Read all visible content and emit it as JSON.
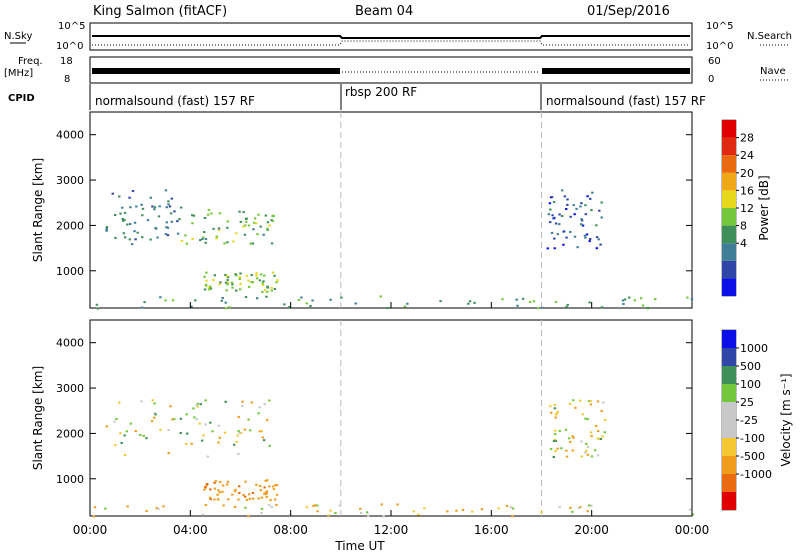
{
  "header": {
    "station": "King Salmon (fitACF)",
    "beam": "Beam 04",
    "date": "01/Sep/2016"
  },
  "top_panels": {
    "nsky_label": "N.Sky",
    "nsky_ticks": [
      "10^5",
      "10^0"
    ],
    "nsky_right_ticks": [
      "10^5",
      "10^0"
    ],
    "nsearch_label": "N.Search",
    "freq_label": "Freq.",
    "freq_unit": "[MHz]",
    "freq_ticks": [
      "18",
      "8"
    ],
    "nave_ticks": [
      "60",
      "0"
    ],
    "nave_label": "Nave",
    "cpid_label": "CPID",
    "cpid_segments": [
      {
        "label": "normalsound (fast) 157 RF",
        "start": 0,
        "end": 10
      },
      {
        "label": "rbsp 200 RF",
        "start": 10,
        "end": 18
      },
      {
        "label": "normalsound (fast) 157 RF",
        "start": 18,
        "end": 24
      }
    ]
  },
  "colors": {
    "power_scale": [
      "#0a10e6",
      "#2f46a8",
      "#3f7e96",
      "#3f8f5a",
      "#72c83a",
      "#e8d81c",
      "#f0a818",
      "#ea6a10",
      "#e02a10",
      "#e00000"
    ],
    "velocity_scale": [
      "#e00000",
      "#ea6a10",
      "#f09c1c",
      "#f3c830",
      "#c8c8c8",
      "#c8c8c8",
      "#72c83a",
      "#3f8f5a",
      "#2f46a8",
      "#0a10e6"
    ]
  },
  "chart_data": [
    {
      "type": "heatmap",
      "title": "",
      "xlabel": "",
      "ylabel": "Slant Range [km]",
      "colorbar_label": "Power [dB]",
      "colorbar_ticks": [
        "28",
        "24",
        "20",
        "16",
        "12",
        "8",
        "4"
      ],
      "colorbar_range": [
        0,
        30
      ],
      "xlim": [
        0,
        24
      ],
      "ylim": [
        180,
        4500
      ],
      "yticks": [
        "1000",
        "2000",
        "3000",
        "4000"
      ],
      "mode_boundaries_hours": [
        10,
        18
      ],
      "regions": [
        {
          "t0": 0.6,
          "t1": 3.6,
          "r0": 1600,
          "r1": 2800,
          "value": 8
        },
        {
          "t0": 3.6,
          "t1": 7.3,
          "r0": 1600,
          "r1": 2400,
          "value": 12
        },
        {
          "t0": 4.5,
          "t1": 7.5,
          "r0": 550,
          "r1": 1000,
          "value": 14
        },
        {
          "t0": 0.0,
          "t1": 24.0,
          "r0": 190,
          "r1": 460,
          "value": 10
        },
        {
          "t0": 18.2,
          "t1": 20.5,
          "r0": 1500,
          "r1": 2800,
          "value": 6
        }
      ]
    },
    {
      "type": "heatmap",
      "title": "",
      "xlabel": "Time UT",
      "ylabel": "Slant Range [km]",
      "colorbar_label": "Velocity [m s⁻¹]",
      "colorbar_ticks": [
        "1000",
        "500",
        "100",
        "25",
        "-25",
        "-100",
        "-500",
        "-1000"
      ],
      "xlim": [
        0,
        24
      ],
      "xticks": [
        "00:00",
        "04:00",
        "08:00",
        "12:00",
        "16:00",
        "20:00",
        "00:00"
      ],
      "ylim": [
        180,
        4500
      ],
      "yticks": [
        "1000",
        "2000",
        "3000",
        "4000"
      ],
      "mode_boundaries_hours": [
        10,
        18
      ],
      "regions": [
        {
          "t0": 0.6,
          "t1": 7.3,
          "r0": 1500,
          "r1": 2800,
          "value": 0
        },
        {
          "t0": 4.5,
          "t1": 7.5,
          "r0": 550,
          "r1": 1000,
          "value": -400
        },
        {
          "t0": 0.0,
          "t1": 24.0,
          "r0": 190,
          "r1": 460,
          "value": -60
        },
        {
          "t0": 18.2,
          "t1": 20.5,
          "r0": 1500,
          "r1": 2800,
          "value": -20
        }
      ]
    }
  ]
}
